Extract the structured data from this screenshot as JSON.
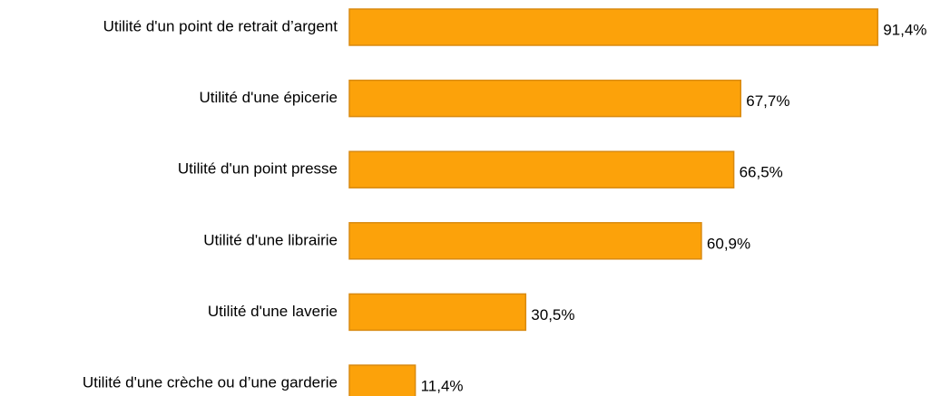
{
  "chart_data": {
    "type": "bar",
    "orientation": "horizontal",
    "categories": [
      "Utilité d'un point de retrait d’argent",
      "Utilité d'une épicerie",
      "Utilité d'un point presse",
      "Utilité d'une librairie",
      "Utilité d'une laverie",
      "Utilité d'une crèche ou d’une garderie"
    ],
    "values": [
      91.4,
      67.7,
      66.5,
      60.9,
      30.5,
      11.4
    ],
    "value_labels": [
      "91,4%",
      "67,7%",
      "66,5%",
      "60,9%",
      "30,5%",
      "11,4%"
    ],
    "color": "#fca20a"
  }
}
